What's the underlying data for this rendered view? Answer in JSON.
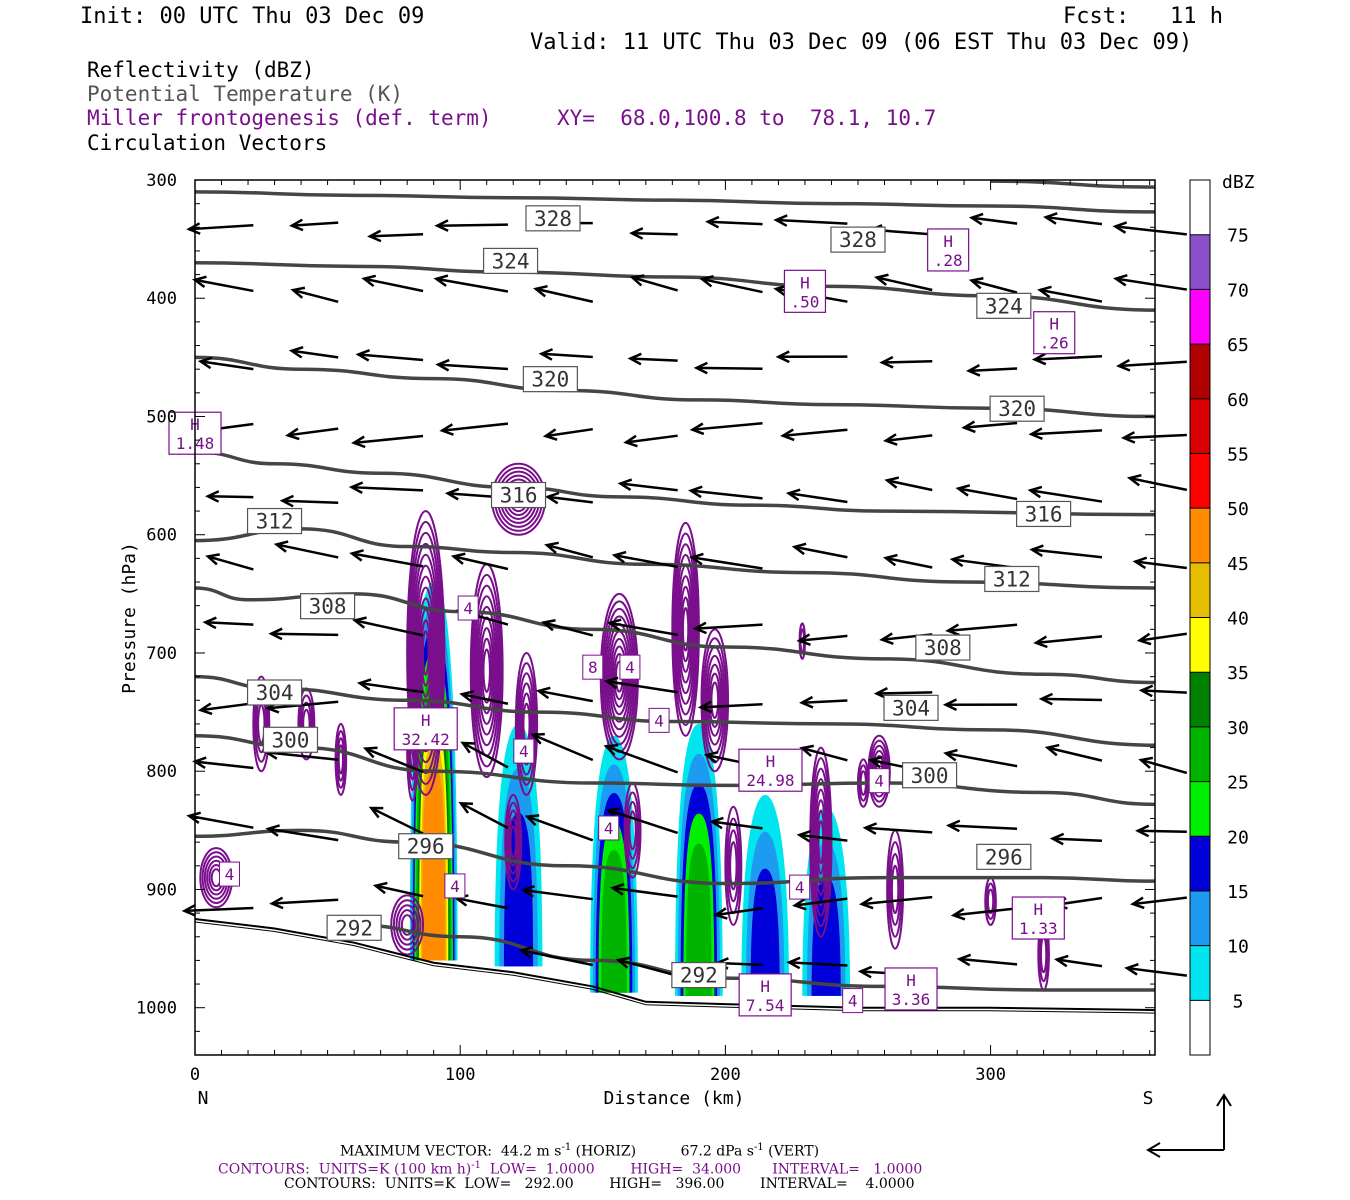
{
  "header": {
    "init": "Init: 00 UTC Thu 03 Dec 09",
    "fcst_label": "Fcst:",
    "fcst_value": "11 h",
    "valid": "Valid: 11 UTC Thu 03 Dec 09 (06 EST Thu 03 Dec 09)"
  },
  "titles": {
    "reflectivity": "Reflectivity (dBZ)",
    "theta": "Potential Temperature (K)",
    "miller": "Miller frontogenesis (def. term)",
    "xy": "XY=  68.0,100.8 to  78.1, 10.7",
    "vectors": "Circulation Vectors"
  },
  "colors": {
    "theta_line": "#454545",
    "frontogenesis": "#7a0f8c",
    "purple_text": "#7a0f8c",
    "gray_text": "#555555"
  },
  "chart_data": {
    "type": "vertical cross-section",
    "xlabel": "Distance (km)",
    "ylabel": "Pressure (hPa)",
    "xlim": [
      0,
      362
    ],
    "ylim": [
      1040,
      300
    ],
    "x_ticks": [
      0,
      100,
      200,
      300
    ],
    "y_ticks": [
      300,
      400,
      500,
      600,
      700,
      800,
      900,
      1000
    ],
    "left_end": "N",
    "right_end": "S",
    "theta_contours": [
      {
        "label": "328",
        "points": [
          [
            0,
            310
          ],
          [
            60,
            313
          ],
          [
            120,
            315
          ],
          [
            180,
            317
          ],
          [
            240,
            320
          ],
          [
            300,
            322
          ],
          [
            362,
            327
          ]
        ],
        "label_at": [
          135,
          332
        ]
      },
      {
        "label": "328",
        "points": [
          [
            300,
            301
          ],
          [
            362,
            306
          ]
        ],
        "label_at": [
          250,
          350
        ]
      },
      {
        "label": "324",
        "points": [
          [
            0,
            370
          ],
          [
            60,
            373
          ],
          [
            120,
            378
          ],
          [
            180,
            382
          ],
          [
            240,
            390
          ],
          [
            300,
            398
          ],
          [
            362,
            410
          ]
        ],
        "label_at": [
          119,
          368
        ]
      },
      {
        "label": "324",
        "points": [],
        "label_at": [
          305,
          406
        ]
      },
      {
        "label": "320",
        "points": [
          [
            0,
            450
          ],
          [
            40,
            460
          ],
          [
            90,
            468
          ],
          [
            140,
            478
          ],
          [
            190,
            486
          ],
          [
            240,
            490
          ],
          [
            300,
            493
          ],
          [
            362,
            500
          ]
        ],
        "label_at": [
          134,
          468
        ]
      },
      {
        "label": "320",
        "points": [],
        "label_at": [
          310,
          493
        ]
      },
      {
        "label": "316",
        "points": [
          [
            0,
            530
          ],
          [
            30,
            540
          ],
          [
            70,
            548
          ],
          [
            120,
            560
          ],
          [
            160,
            568
          ],
          [
            210,
            575
          ],
          [
            260,
            580
          ],
          [
            362,
            583
          ]
        ],
        "label_at": [
          122,
          566
        ]
      },
      {
        "label": "316",
        "points": [],
        "label_at": [
          320,
          582
        ]
      },
      {
        "label": "312",
        "points": [
          [
            0,
            605
          ],
          [
            40,
            595
          ],
          [
            80,
            610
          ],
          [
            120,
            615
          ],
          [
            170,
            625
          ],
          [
            230,
            632
          ],
          [
            290,
            640
          ],
          [
            362,
            645
          ]
        ],
        "label_at": [
          30,
          588
        ]
      },
      {
        "label": "312",
        "points": [],
        "label_at": [
          308,
          637
        ]
      },
      {
        "label": "308",
        "points": [
          [
            0,
            645
          ],
          [
            20,
            655
          ],
          [
            60,
            650
          ],
          [
            100,
            665
          ],
          [
            150,
            680
          ],
          [
            200,
            695
          ],
          [
            260,
            705
          ],
          [
            320,
            718
          ],
          [
            362,
            725
          ]
        ],
        "label_at": [
          50,
          660
        ]
      },
      {
        "label": "308",
        "points": [],
        "label_at": [
          282,
          695
        ]
      },
      {
        "label": "304",
        "points": [
          [
            0,
            720
          ],
          [
            30,
            730
          ],
          [
            80,
            740
          ],
          [
            130,
            750
          ],
          [
            180,
            758
          ],
          [
            240,
            760
          ],
          [
            300,
            765
          ],
          [
            362,
            778
          ]
        ],
        "label_at": [
          30,
          733
        ]
      },
      {
        "label": "304",
        "points": [],
        "label_at": [
          270,
          746
        ]
      },
      {
        "label": "300",
        "points": [
          [
            0,
            770
          ],
          [
            40,
            780
          ],
          [
            90,
            800
          ],
          [
            150,
            810
          ],
          [
            200,
            812
          ],
          [
            260,
            810
          ],
          [
            320,
            818
          ],
          [
            362,
            828
          ]
        ],
        "label_at": [
          36,
          773
        ]
      },
      {
        "label": "300",
        "points": [],
        "label_at": [
          277,
          803
        ]
      },
      {
        "label": "296",
        "points": [
          [
            0,
            855
          ],
          [
            40,
            850
          ],
          [
            80,
            860
          ],
          [
            140,
            880
          ],
          [
            200,
            895
          ],
          [
            260,
            890
          ],
          [
            320,
            890
          ],
          [
            362,
            893
          ]
        ],
        "label_at": [
          87,
          863
        ]
      },
      {
        "label": "296",
        "points": [],
        "label_at": [
          305,
          872
        ]
      },
      {
        "label": "292",
        "points": [
          [
            60,
            930
          ],
          [
            100,
            940
          ],
          [
            150,
            960
          ],
          [
            200,
            975
          ],
          [
            260,
            982
          ],
          [
            320,
            985
          ],
          [
            362,
            985
          ]
        ],
        "label_at": [
          60,
          932
        ]
      },
      {
        "label": "292",
        "points": [],
        "label_at": [
          190,
          972
        ]
      }
    ],
    "reflectivity_colorbar": {
      "units": "dBZ",
      "levels": [
        5,
        10,
        15,
        20,
        25,
        30,
        35,
        40,
        45,
        50,
        55,
        60,
        65,
        70,
        75
      ],
      "colors": [
        "#ffffff",
        "#00e5ee",
        "#1c9bf0",
        "#0000d8",
        "#00f000",
        "#00b400",
        "#008000",
        "#ffff00",
        "#e6bd00",
        "#ff8c00",
        "#ff0000",
        "#d80000",
        "#b00000",
        "#ff00ff",
        "#8b4fc9",
        "#ffffff"
      ]
    },
    "reflectivity_cores": [
      {
        "x": 90,
        "p_top": 640,
        "p_bottom": 960,
        "max_dbz": 45
      },
      {
        "x": 122,
        "p_top": 760,
        "p_bottom": 965,
        "max_dbz": 15
      },
      {
        "x": 158,
        "p_top": 770,
        "p_bottom": 990,
        "max_dbz": 25
      },
      {
        "x": 190,
        "p_top": 760,
        "p_bottom": 990,
        "max_dbz": 25
      },
      {
        "x": 215,
        "p_top": 820,
        "p_bottom": 990,
        "max_dbz": 15
      },
      {
        "x": 238,
        "p_top": 830,
        "p_bottom": 990,
        "max_dbz": 15
      }
    ],
    "frontogenesis_highs": [
      {
        "text": "H",
        "value": "1.48",
        "x": 0,
        "p": 515
      },
      {
        "text": "H",
        "value": ".50",
        "x": 230,
        "p": 395
      },
      {
        "text": "H",
        "value": ".28",
        "x": 284,
        "p": 360
      },
      {
        "text": "H",
        "value": ".26",
        "x": 324,
        "p": 430
      },
      {
        "text": "H",
        "value": "24.98",
        "x": 217,
        "p": 800
      },
      {
        "text": "H",
        "value": "1.33",
        "x": 318,
        "p": 925
      },
      {
        "text": "H",
        "value": "3.36",
        "x": 270,
        "p": 985
      },
      {
        "text": "H",
        "value": "7.54",
        "x": 215,
        "p": 990
      },
      {
        "text": "H",
        "value": "32.42",
        "x": 87,
        "p": 765
      }
    ],
    "frontogenesis_labels": [
      {
        "text": "4",
        "x": 103,
        "p": 662
      },
      {
        "text": "8",
        "x": 150,
        "p": 712
      },
      {
        "text": "4",
        "x": 164,
        "p": 712
      },
      {
        "text": "4",
        "x": 175,
        "p": 757
      },
      {
        "text": "4",
        "x": 124,
        "p": 783
      },
      {
        "text": "4",
        "x": 156,
        "p": 848
      },
      {
        "text": "4",
        "x": 228,
        "p": 898
      },
      {
        "text": "4",
        "x": 13,
        "p": 887
      },
      {
        "text": "4",
        "x": 248,
        "p": 994
      },
      {
        "text": "4",
        "x": 258,
        "p": 808
      },
      {
        "text": "4",
        "x": 98,
        "p": 897
      }
    ],
    "vectors": {
      "max_horizontal": "44.2",
      "max_vertical": "67.2",
      "reference_arrow": "up-left"
    }
  },
  "footer": {
    "max_vector_label": "MAXIMUM VECTOR:",
    "max_vector_horiz_value": "44.2 m s",
    "max_vector_horiz_sup": "-1",
    "max_vector_horiz_unit": "(HORIZ)",
    "max_vector_vert_value": "67.2 dPa s",
    "max_vector_vert_sup": "-1",
    "max_vector_vert_unit": "(VERT)",
    "contours1_pre": "CONTOURS:  UNITS=K (100 km h)",
    "contours1_sup": "-1",
    "contours1_post": "  LOW=  1.0000        HIGH=  34.000       INTERVAL=   1.0000",
    "contours2": "CONTOURS:  UNITS=K  LOW=   292.00        HIGH=   396.00        INTERVAL=    4.0000"
  }
}
